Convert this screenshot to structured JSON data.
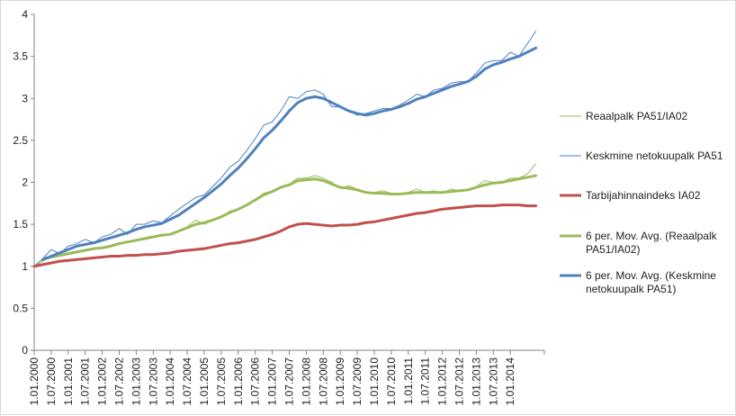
{
  "chart_data": {
    "type": "line",
    "title": "",
    "xlabel": "",
    "ylabel": "",
    "ylim": [
      0,
      4
    ],
    "y_ticks": [
      "0",
      "0.5",
      "1",
      "1.5",
      "2",
      "2.5",
      "3",
      "3.5",
      "4"
    ],
    "grid": false,
    "legend_position": "right",
    "x": [
      "2000-01",
      "2000-04",
      "2000-07",
      "2000-10",
      "2001-01",
      "2001-04",
      "2001-07",
      "2001-10",
      "2002-01",
      "2002-04",
      "2002-07",
      "2002-10",
      "2003-01",
      "2003-04",
      "2003-07",
      "2003-10",
      "2004-01",
      "2004-04",
      "2004-07",
      "2004-10",
      "2005-01",
      "2005-04",
      "2005-07",
      "2005-10",
      "2006-01",
      "2006-04",
      "2006-07",
      "2006-10",
      "2007-01",
      "2007-04",
      "2007-07",
      "2007-10",
      "2008-01",
      "2008-04",
      "2008-07",
      "2008-10",
      "2009-01",
      "2009-04",
      "2009-07",
      "2009-10",
      "2010-01",
      "2010-04",
      "2010-07",
      "2010-10",
      "2011-01",
      "2011-04",
      "2011-07",
      "2011-10",
      "2012-01",
      "2012-04",
      "2012-07",
      "2012-10",
      "2013-01",
      "2013-04",
      "2013-07",
      "2013-10",
      "2014-01",
      "2014-04",
      "2014-07",
      "2014-10"
    ],
    "x_tick_labels": [
      "1.01.2000",
      "1.07.2000",
      "1.01.2001",
      "1.07.2001",
      "1.01.2002",
      "1.07.2002",
      "1.01.2003",
      "1.07.2003",
      "1.01.2004",
      "1.07.2004",
      "1.01.2005",
      "1.07.2005",
      "1.01.2006",
      "1.07.2006",
      "1.01.2007",
      "1.07.2007",
      "1.01.2008",
      "1.07.2008",
      "1.01.2009",
      "1.07.2009",
      "1.01.2010",
      "1.07.2010",
      "1.01.2011",
      "1.07.2011",
      "1.01.2012",
      "1.07.2012",
      "1.01.2013",
      "1.07.2013",
      "1.01.2014"
    ],
    "series": [
      {
        "name": "Reaalpalk PA51/IA02",
        "color": "#9bbb59",
        "width": 1,
        "values": [
          1.0,
          1.06,
          1.13,
          1.14,
          1.16,
          1.18,
          1.2,
          1.22,
          1.22,
          1.25,
          1.28,
          1.3,
          1.31,
          1.34,
          1.36,
          1.38,
          1.38,
          1.42,
          1.47,
          1.55,
          1.5,
          1.55,
          1.58,
          1.66,
          1.68,
          1.73,
          1.8,
          1.87,
          1.9,
          1.95,
          1.98,
          2.05,
          2.05,
          2.08,
          2.05,
          2.0,
          1.93,
          1.96,
          1.92,
          1.88,
          1.88,
          1.9,
          1.87,
          1.85,
          1.88,
          1.92,
          1.88,
          1.9,
          1.87,
          1.92,
          1.9,
          1.9,
          1.95,
          2.02,
          2.0,
          2.0,
          2.05,
          2.05,
          2.1,
          2.22
        ]
      },
      {
        "name": "Keskmine netokuupalk PA51",
        "color": "#4f81bd",
        "width": 1,
        "values": [
          1.0,
          1.09,
          1.2,
          1.15,
          1.24,
          1.27,
          1.32,
          1.28,
          1.35,
          1.38,
          1.45,
          1.38,
          1.5,
          1.5,
          1.54,
          1.52,
          1.6,
          1.68,
          1.75,
          1.82,
          1.85,
          1.95,
          2.05,
          2.18,
          2.25,
          2.38,
          2.52,
          2.68,
          2.72,
          2.85,
          3.02,
          3.0,
          3.08,
          3.1,
          3.05,
          2.9,
          2.9,
          2.85,
          2.8,
          2.82,
          2.85,
          2.88,
          2.88,
          2.92,
          2.98,
          3.05,
          3.02,
          3.1,
          3.12,
          3.18,
          3.2,
          3.2,
          3.3,
          3.42,
          3.45,
          3.45,
          3.55,
          3.5,
          3.65,
          3.8
        ]
      },
      {
        "name": "Tarbijahinnaindeks IA02",
        "color": "#c0504d",
        "width": 3,
        "values": [
          1.0,
          1.02,
          1.04,
          1.06,
          1.07,
          1.08,
          1.09,
          1.1,
          1.11,
          1.12,
          1.12,
          1.13,
          1.13,
          1.14,
          1.14,
          1.15,
          1.16,
          1.18,
          1.19,
          1.2,
          1.21,
          1.23,
          1.25,
          1.27,
          1.28,
          1.3,
          1.32,
          1.35,
          1.38,
          1.42,
          1.47,
          1.5,
          1.51,
          1.5,
          1.49,
          1.48,
          1.49,
          1.49,
          1.5,
          1.52,
          1.53,
          1.55,
          1.57,
          1.59,
          1.61,
          1.63,
          1.64,
          1.66,
          1.68,
          1.69,
          1.7,
          1.71,
          1.72,
          1.72,
          1.72,
          1.73,
          1.73,
          1.73,
          1.72,
          1.72
        ]
      },
      {
        "name": "6 per. Mov. Avg. (Reaalpalk PA51/IA02)",
        "color": "#9bbb59",
        "width": 3,
        "values": [
          null,
          1.08,
          1.11,
          1.13,
          1.15,
          1.17,
          1.19,
          1.21,
          1.22,
          1.24,
          1.27,
          1.29,
          1.31,
          1.33,
          1.35,
          1.37,
          1.38,
          1.42,
          1.46,
          1.5,
          1.52,
          1.55,
          1.59,
          1.64,
          1.68,
          1.73,
          1.79,
          1.85,
          1.89,
          1.94,
          1.97,
          2.02,
          2.03,
          2.04,
          2.02,
          1.98,
          1.94,
          1.93,
          1.91,
          1.88,
          1.87,
          1.87,
          1.86,
          1.86,
          1.87,
          1.88,
          1.88,
          1.88,
          1.88,
          1.89,
          1.9,
          1.91,
          1.94,
          1.97,
          1.99,
          2.0,
          2.02,
          2.04,
          2.06,
          2.08
        ]
      },
      {
        "name": "6 per. Mov. Avg. (Keskmine netokuupalk PA51)",
        "color": "#4f81bd",
        "width": 3,
        "values": [
          null,
          1.08,
          1.12,
          1.16,
          1.2,
          1.24,
          1.26,
          1.28,
          1.31,
          1.34,
          1.37,
          1.4,
          1.44,
          1.47,
          1.49,
          1.51,
          1.56,
          1.61,
          1.68,
          1.75,
          1.82,
          1.9,
          1.98,
          2.08,
          2.17,
          2.28,
          2.4,
          2.53,
          2.62,
          2.73,
          2.85,
          2.95,
          3.0,
          3.02,
          3.0,
          2.95,
          2.9,
          2.85,
          2.82,
          2.8,
          2.82,
          2.85,
          2.87,
          2.9,
          2.94,
          2.99,
          3.02,
          3.06,
          3.1,
          3.14,
          3.17,
          3.2,
          3.26,
          3.35,
          3.4,
          3.43,
          3.47,
          3.5,
          3.55,
          3.6
        ]
      }
    ]
  }
}
